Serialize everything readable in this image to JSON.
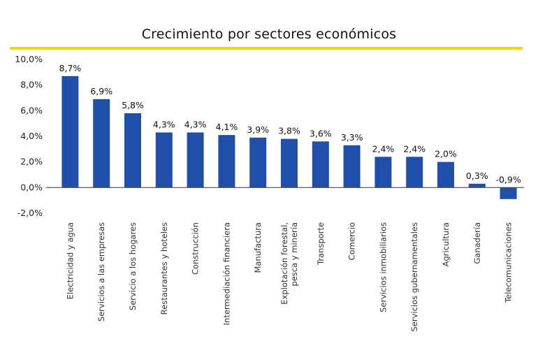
{
  "colors": {
    "bar": "#1f4fa8",
    "title_rule": "#f2d21b",
    "baseline": "#444444"
  },
  "chart_data": {
    "type": "bar",
    "title": "Crecimiento por sectores económicos",
    "ylim": [
      -2.0,
      10.0
    ],
    "yticks": [
      -2.0,
      0.0,
      2.0,
      4.0,
      6.0,
      8.0,
      10.0
    ],
    "ytick_labels": [
      "-2,0%",
      "0,0%",
      "2,0%",
      "4,0%",
      "6,0%",
      "8,0%",
      "10,0%"
    ],
    "grid": false,
    "categories": [
      [
        "Electricidad y agua"
      ],
      [
        "Servicios a las empresas"
      ],
      [
        "Servicio a los hogares"
      ],
      [
        "Restaurantes y hoteles"
      ],
      [
        "Construcción"
      ],
      [
        "Intermediación financiera"
      ],
      [
        "Manufactura"
      ],
      [
        "Explotación forestal,",
        "pesca y minería"
      ],
      [
        "Transporte"
      ],
      [
        "Comercio"
      ],
      [
        "Servicios inmobiliarios"
      ],
      [
        "Servicios gubernamentales"
      ],
      [
        "Agricultura"
      ],
      [
        "Ganadería"
      ],
      [
        "Telecomunicaciones"
      ]
    ],
    "values": [
      8.7,
      6.9,
      5.8,
      4.3,
      4.3,
      4.1,
      3.9,
      3.8,
      3.6,
      3.3,
      2.4,
      2.4,
      2.0,
      0.3,
      -0.9
    ],
    "data_labels": [
      "8,7%",
      "6,9%",
      "5,8%",
      "4,3%",
      "4,3%",
      "4,1%",
      "3,9%",
      "3,8%",
      "3,6%",
      "3,3%",
      "2,4%",
      "2,4%",
      "2,0%",
      "0,3%",
      "-0,9%"
    ]
  }
}
